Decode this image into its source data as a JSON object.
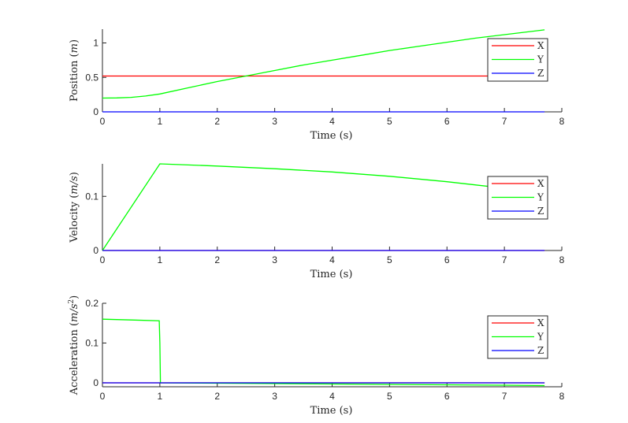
{
  "chart_data": [
    {
      "type": "line",
      "xlabel": "Time (s)",
      "ylabel": "Position (m)",
      "ylabel_plain": "Position (",
      "ylabel_italic": "m",
      "ylabel_close": ")",
      "xlim": [
        0,
        8
      ],
      "ylim": [
        0,
        1.2
      ],
      "xticks": [
        "0",
        "1",
        "2",
        "3",
        "4",
        "5",
        "6",
        "7",
        "8"
      ],
      "yticks": [
        {
          "v": 0,
          "label": "0"
        },
        {
          "v": 0.5,
          "label": "0.5"
        },
        {
          "v": 1,
          "label": "1"
        }
      ],
      "grid": false,
      "legend_position": "top-right",
      "series": [
        {
          "name": "X",
          "color": "#ff0000",
          "x": [
            0,
            7.7
          ],
          "y": [
            0.52,
            0.52
          ]
        },
        {
          "name": "Y",
          "color": "#00ff00",
          "x": [
            0,
            0.25,
            0.5,
            0.75,
            1,
            1.5,
            2,
            2.5,
            3,
            3.5,
            4,
            4.5,
            5,
            5.5,
            6,
            6.5,
            7,
            7.5,
            7.7
          ],
          "y": [
            0.2,
            0.202,
            0.21,
            0.23,
            0.26,
            0.35,
            0.44,
            0.52,
            0.6,
            0.68,
            0.75,
            0.82,
            0.89,
            0.95,
            1.01,
            1.07,
            1.12,
            1.17,
            1.19
          ]
        },
        {
          "name": "Z",
          "color": "#0000ff",
          "x": [
            0,
            7.7
          ],
          "y": [
            0,
            0
          ]
        }
      ]
    },
    {
      "type": "line",
      "xlabel": "Time (s)",
      "ylabel": "Velocity (m/s)",
      "ylabel_plain": "Velocity (",
      "ylabel_italic": "m/s",
      "ylabel_close": ")",
      "xlim": [
        0,
        8
      ],
      "ylim": [
        0,
        0.16
      ],
      "xticks": [
        "0",
        "1",
        "2",
        "3",
        "4",
        "5",
        "6",
        "7",
        "8"
      ],
      "yticks": [
        {
          "v": 0,
          "label": "0"
        },
        {
          "v": 0.1,
          "label": "0.1"
        }
      ],
      "grid": false,
      "legend_position": "top-right",
      "series": [
        {
          "name": "X",
          "color": "#ff0000",
          "x": [
            0,
            7.7
          ],
          "y": [
            0,
            0
          ]
        },
        {
          "name": "Y",
          "color": "#00ff00",
          "x": [
            0,
            1,
            2,
            3,
            4,
            5,
            6,
            7,
            7.7
          ],
          "y": [
            0,
            0.16,
            0.156,
            0.151,
            0.145,
            0.137,
            0.127,
            0.115,
            0.105
          ]
        },
        {
          "name": "Z",
          "color": "#0000ff",
          "x": [
            0,
            7.7
          ],
          "y": [
            0,
            0
          ]
        }
      ]
    },
    {
      "type": "line",
      "xlabel": "Time (s)",
      "ylabel": "Acceleration (m/s²)",
      "ylabel_plain": "Acceleration (",
      "ylabel_italic": "m/s",
      "ylabel_sup": "2",
      "ylabel_close": ")",
      "xlim": [
        0,
        8
      ],
      "ylim": [
        -0.01,
        0.2
      ],
      "xticks": [
        "0",
        "1",
        "2",
        "3",
        "4",
        "5",
        "6",
        "7",
        "8"
      ],
      "yticks": [
        {
          "v": 0,
          "label": "0"
        },
        {
          "v": 0.1,
          "label": "0.1"
        },
        {
          "v": 0.2,
          "label": "0.2"
        }
      ],
      "grid": false,
      "legend_position": "top-right",
      "series": [
        {
          "name": "X",
          "color": "#ff0000",
          "x": [
            0,
            7.7
          ],
          "y": [
            0,
            0
          ]
        },
        {
          "name": "Y",
          "color": "#00ff00",
          "x": [
            0,
            0.5,
            0.99,
            1.0,
            1.01,
            2,
            3,
            4,
            5,
            6,
            7,
            7.7
          ],
          "y": [
            0.16,
            0.158,
            0.156,
            0.1,
            0,
            -0.001,
            -0.002,
            -0.003,
            -0.004,
            -0.005,
            -0.006,
            -0.007
          ]
        },
        {
          "name": "Z",
          "color": "#0000ff",
          "x": [
            0,
            7.7
          ],
          "y": [
            0,
            0
          ]
        }
      ]
    }
  ]
}
